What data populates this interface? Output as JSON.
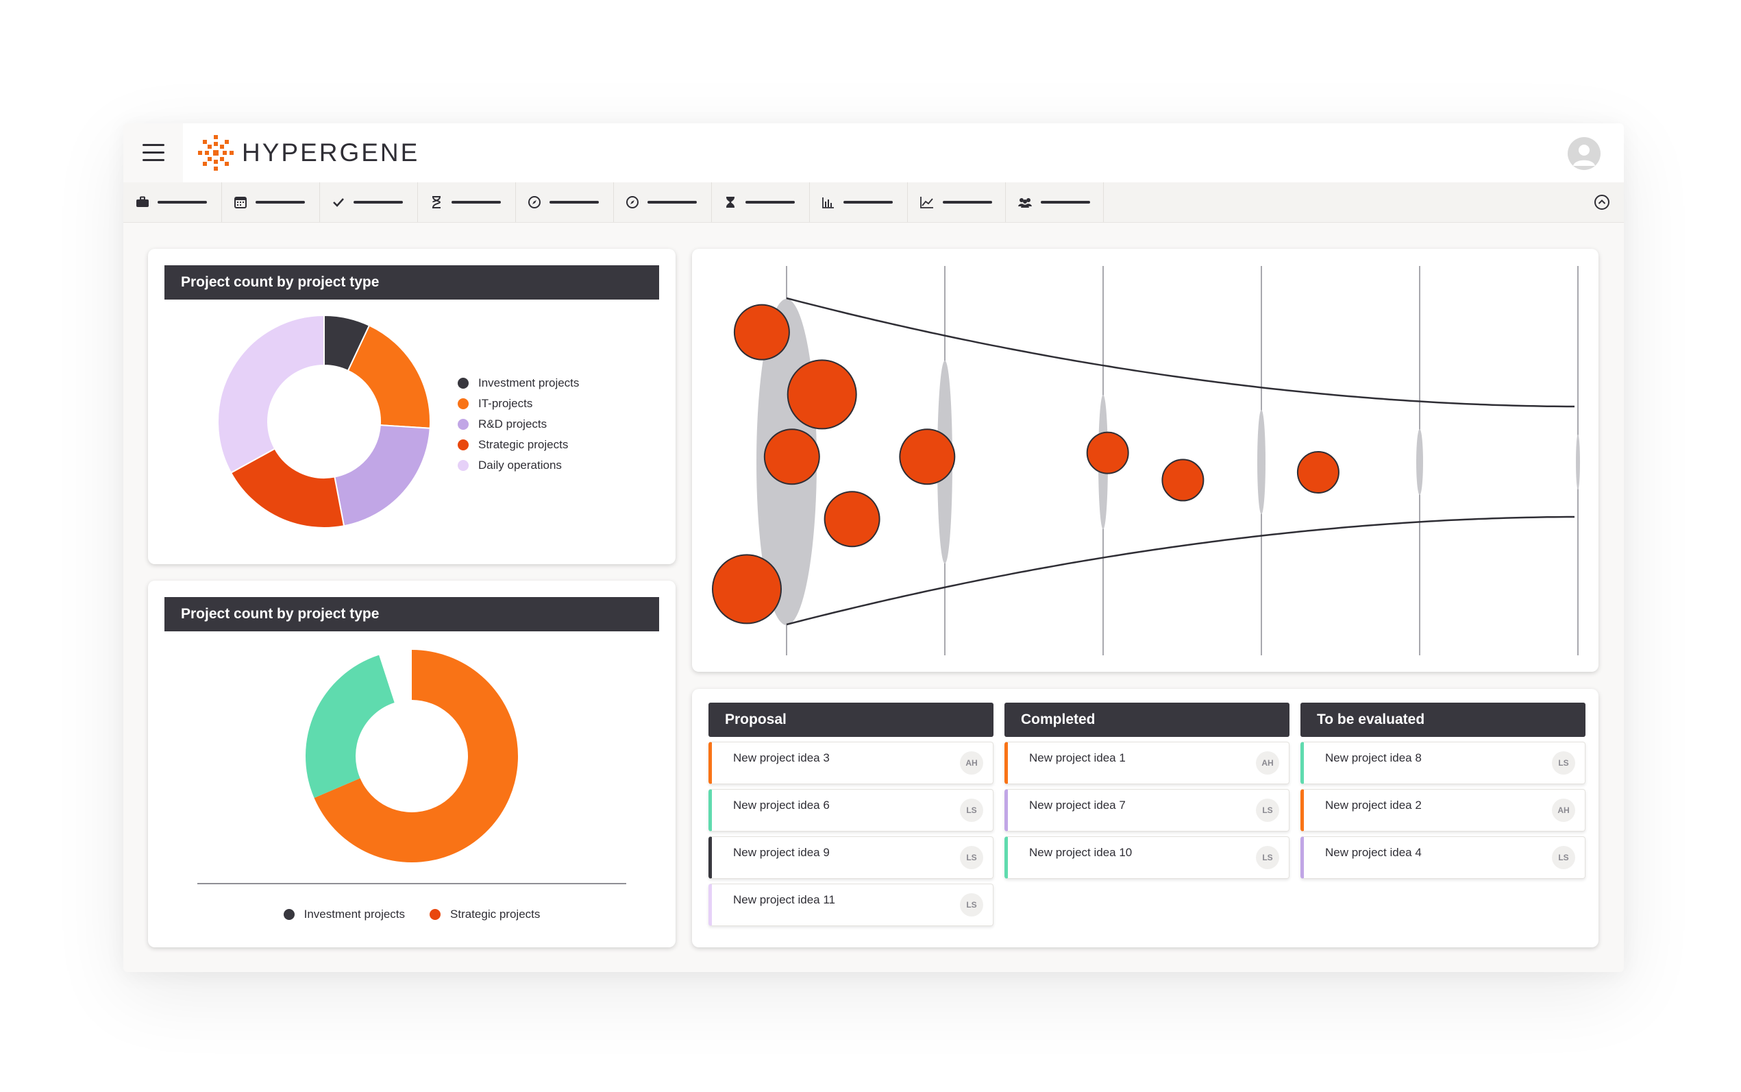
{
  "brand": {
    "name": "HYPERGENE",
    "accent": "#f16a13"
  },
  "toolbar": {
    "icons": [
      "briefcase-icon",
      "calendar-icon",
      "checkmark-icon",
      "hourglass-outline-icon",
      "compass-icon",
      "compass-icon",
      "hourglass-filled-icon",
      "bar-chart-icon",
      "line-chart-icon",
      "team-icon"
    ]
  },
  "colors": {
    "dark": "#38373e",
    "orange": "#f97316",
    "red_orange": "#e9470d",
    "lavender": "#c1a6e6",
    "pale_lavender": "#e6d1f8",
    "teal": "#5fdbae"
  },
  "charts": {
    "pie1": {
      "title": "Project count by project type",
      "chart_data": {
        "type": "pie",
        "categories": [
          "Investment projects",
          "IT-projects",
          "R&D projects",
          "Strategic projects",
          "Daily operations"
        ],
        "values": [
          7,
          19,
          21,
          20,
          33
        ],
        "colors": [
          "#38373e",
          "#f97316",
          "#c1a6e6",
          "#e9470d",
          "#e6d1f8"
        ],
        "legend_position": "right"
      }
    },
    "pie2": {
      "title": "Project count by project type",
      "chart_data": {
        "type": "pie",
        "categories": [
          "Investment projects",
          "Strategic projects"
        ],
        "values": [
          27,
          70
        ],
        "colors": [
          "#5fdbae",
          "#f97316"
        ],
        "legend_entries": [
          {
            "label": "Investment projects",
            "color": "#38373e"
          },
          {
            "label": "Strategic projects",
            "color": "#e9470d"
          }
        ],
        "legend_position": "bottom"
      }
    }
  },
  "funnel": {
    "chart_data": {
      "type": "scatter",
      "stages": 6,
      "bubbles": [
        {
          "stage": 0.1,
          "y": 0.17,
          "size": 1.0
        },
        {
          "stage": 0.0,
          "y": 0.83,
          "size": 1.25
        },
        {
          "stage": 0.3,
          "y": 0.49,
          "size": 1.0
        },
        {
          "stage": 0.5,
          "y": 0.33,
          "size": 1.25
        },
        {
          "stage": 0.7,
          "y": 0.65,
          "size": 1.0
        },
        {
          "stage": 1.2,
          "y": 0.49,
          "size": 1.0
        },
        {
          "stage": 2.4,
          "y": 0.48,
          "size": 0.75
        },
        {
          "stage": 2.9,
          "y": 0.55,
          "size": 0.75
        },
        {
          "stage": 3.8,
          "y": 0.53,
          "size": 0.75
        }
      ]
    }
  },
  "kanban": {
    "columns": [
      {
        "title": "Proposal",
        "cards": [
          {
            "title": "New project idea 3",
            "initials": "AH",
            "color": "#f97316"
          },
          {
            "title": "New project idea 6",
            "initials": "LS",
            "color": "#5fdbae"
          },
          {
            "title": "New project idea 9",
            "initials": "LS",
            "color": "#38373e"
          },
          {
            "title": "New project idea 11",
            "initials": "LS",
            "color": "#e6d1f8"
          }
        ]
      },
      {
        "title": "Completed",
        "cards": [
          {
            "title": "New project idea 1",
            "initials": "AH",
            "color": "#f97316"
          },
          {
            "title": "New project idea 7",
            "initials": "LS",
            "color": "#c1a6e6"
          },
          {
            "title": "New project idea 10",
            "initials": "LS",
            "color": "#5fdbae"
          }
        ]
      },
      {
        "title": "To be evaluated",
        "cards": [
          {
            "title": "New project idea 8",
            "initials": "LS",
            "color": "#5fdbae"
          },
          {
            "title": "New project idea 2",
            "initials": "AH",
            "color": "#f97316"
          },
          {
            "title": "New project idea 4",
            "initials": "LS",
            "color": "#c1a6e6"
          }
        ]
      }
    ]
  }
}
